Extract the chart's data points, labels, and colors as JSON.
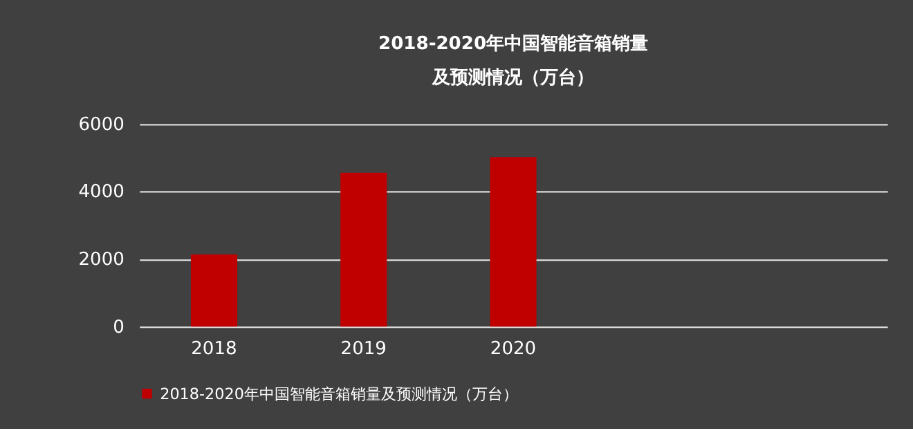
{
  "chart_data": {
    "type": "bar",
    "title": [
      "2018-2020年中国智能音箱销量",
      "及预测情况（万台）"
    ],
    "categories": [
      "2018",
      "2019",
      "2020",
      null,
      null
    ],
    "series": [
      {
        "name": "2018-2020年中国智能音箱销量及预测情况（万台）",
        "color": "#c00000",
        "values": [
          2140,
          4560,
          5020,
          null,
          null
        ]
      }
    ],
    "ylim": [
      0,
      6000
    ],
    "yticks": [
      0,
      2000,
      4000,
      6000
    ],
    "grid": "y",
    "legend": "bottom"
  }
}
